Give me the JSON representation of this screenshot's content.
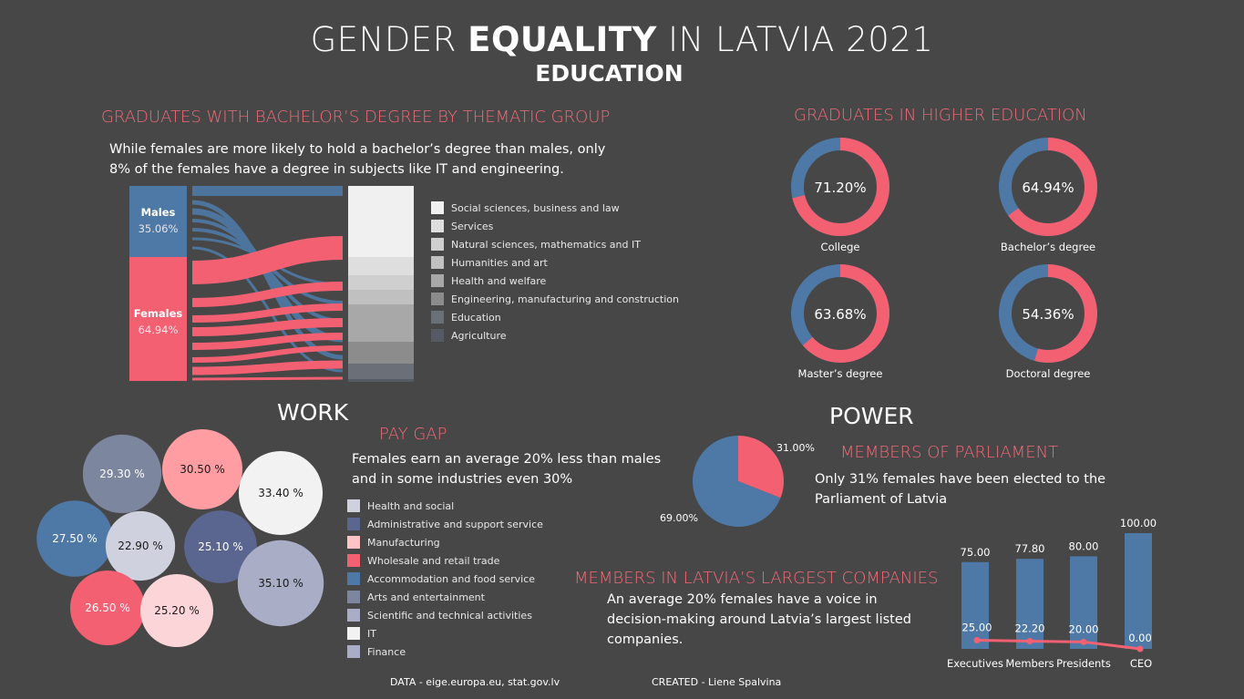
{
  "header": {
    "title_pre": "GENDER ",
    "title_bold": "EQUALITY",
    "title_post": " IN LATVIA 2021",
    "subtitle": "EDUCATION"
  },
  "bachelor": {
    "title": "GRADUATES WITH BACHELOR’S DEGREE BY THEMATIC GROUP",
    "note": "While females are more likely to hold a bachelor’s degree than males, only 8% of the females have a degree in subjects like IT and engineering.",
    "males_label": "Males",
    "males_value": "35.06%",
    "females_label": "Females",
    "females_value": "64.94%",
    "legend": [
      {
        "label": "Social sciences, business and law",
        "color": "#f0f0f0"
      },
      {
        "label": "Services",
        "color": "#dedede"
      },
      {
        "label": "Natural sciences, mathematics and IT",
        "color": "#cfcfcf"
      },
      {
        "label": "Humanities and art",
        "color": "#c0c0c0"
      },
      {
        "label": "Health and welfare",
        "color": "#a8a8a8"
      },
      {
        "label": "Engineering, manufacturing and construction",
        "color": "#8c8c8c"
      },
      {
        "label": "Education",
        "color": "#6b6f78"
      },
      {
        "label": "Agriculture",
        "color": "#555a64"
      }
    ]
  },
  "higher_ed": {
    "title": "GRADUATES IN HIGHER EDUCATION",
    "donuts": [
      {
        "label": "College",
        "female_pct": 71.2,
        "text": "71.20%"
      },
      {
        "label": "Bachelor’s degree",
        "female_pct": 64.94,
        "text": "64.94%"
      },
      {
        "label": "Master’s degree",
        "female_pct": 63.68,
        "text": "63.68%"
      },
      {
        "label": "Doctoral degree",
        "female_pct": 54.36,
        "text": "54.36%"
      }
    ],
    "colors": {
      "female": "#f26072",
      "male": "#4e79a7"
    }
  },
  "work": {
    "title": "WORK",
    "pay_gap_title": "PAY GAP",
    "note": "Females earn an average 20% less than males and in some industries even 30%",
    "bubbles": [
      {
        "label": "29.30 %",
        "value": 29.3,
        "color": "#7d869f",
        "industry": "Arts and entertainment"
      },
      {
        "label": "30.50 %",
        "value": 30.5,
        "color": "#ff9da2",
        "industry": "Manufacturing"
      },
      {
        "label": "33.40 %",
        "value": 33.4,
        "color": "#f2f2f2",
        "industry": "IT"
      },
      {
        "label": "27.50 %",
        "value": 27.5,
        "color": "#4e79a7",
        "industry": "Accommodation and food service"
      },
      {
        "label": "22.90 %",
        "value": 22.9,
        "color": "#d0d1de",
        "industry": "Health and social"
      },
      {
        "label": "25.10 %",
        "value": 25.1,
        "color": "#5a6690",
        "industry": "Administrative and support service"
      },
      {
        "label": "35.10 %",
        "value": 35.1,
        "color": "#a9aec6",
        "industry": "Finance"
      },
      {
        "label": "26.50 %",
        "value": 26.5,
        "color": "#f26072",
        "industry": "Wholesale and retail trade"
      },
      {
        "label": "25.20 %",
        "value": 25.2,
        "color": "#fcd5d8",
        "industry": "Scientific and technical activities"
      }
    ],
    "legend": [
      {
        "label": "Health and social",
        "color": "#d0d1de"
      },
      {
        "label": "Administrative and support service",
        "color": "#5a6690"
      },
      {
        "label": "Manufacturing",
        "color": "#ffc3c6"
      },
      {
        "label": "Wholesale and retail trade",
        "color": "#f26072"
      },
      {
        "label": "Accommodation and food service",
        "color": "#4e79a7"
      },
      {
        "label": "Arts and entertainment",
        "color": "#7d869f"
      },
      {
        "label": "Scientific and technical activities",
        "color": "#a9aec6"
      },
      {
        "label": "IT",
        "color": "#f2f2f2"
      },
      {
        "label": "Finance",
        "color": "#a9aec6"
      }
    ]
  },
  "power": {
    "title": "POWER",
    "parliament_title": "MEMBERS OF PARLIAMENT",
    "parliament_note": "Only 31% females have been elected to the Parliament of Latvia",
    "companies_title": "MEMBERS IN LATVIA’S LARGEST COMPANIES",
    "companies_note": "An average 20% females have a voice in decision-making around Latvia’s  largest listed companies."
  },
  "chart_data": [
    {
      "type": "pie",
      "labels": [
        "Females",
        "Males"
      ],
      "values": [
        31.0,
        69.0
      ],
      "value_labels": [
        "31.00%",
        "69.00%"
      ],
      "colors": [
        "#f26072",
        "#4e79a7"
      ]
    },
    {
      "type": "bar",
      "categories": [
        "Executives",
        "Members",
        "Presidents",
        "CEO"
      ],
      "series": [
        {
          "values": [
            75.0,
            77.8,
            80.0,
            100.0
          ],
          "labels": [
            "75.00",
            "77.80",
            "80.00",
            "100.00"
          ],
          "color": "#4e79a7",
          "mark": "bar"
        },
        {
          "values": [
            25.0,
            22.2,
            20.0,
            0.0
          ],
          "labels": [
            "25.00",
            "22.20",
            "20.00",
            "0.00"
          ],
          "color": "#f26072",
          "mark": "line"
        }
      ],
      "ylim": [
        0,
        100
      ]
    }
  ],
  "footer": {
    "data": "DATA - eige.europa.eu, stat.gov.lv",
    "created": "CREATED - Liene Spalvina"
  }
}
